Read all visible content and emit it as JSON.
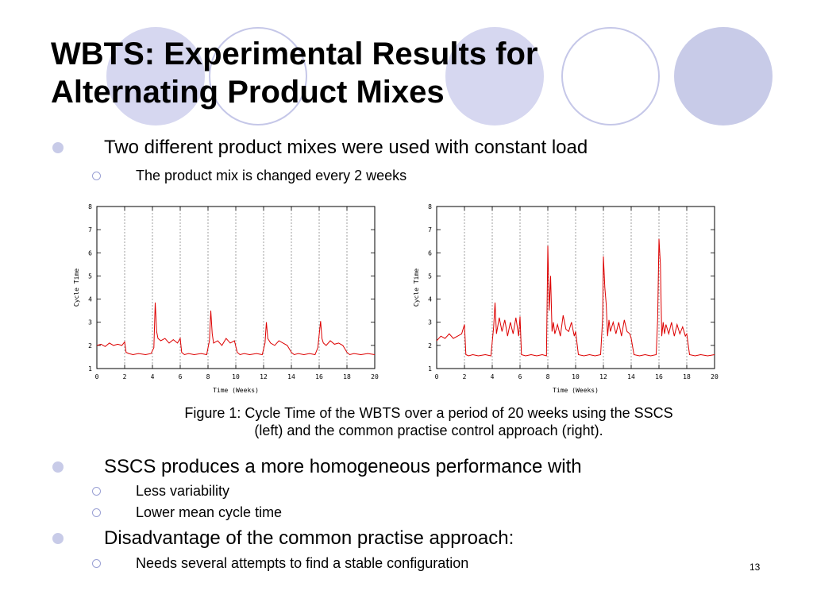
{
  "slide": {
    "title_line1": "WBTS: Experimental Results for",
    "title_line2": "Alternating Product Mixes",
    "bullets": [
      {
        "text": "Two different product mixes were used with constant load",
        "sub": [
          "The product mix is changed every 2 weeks"
        ]
      },
      {
        "text": "SSCS produces a more homogeneous performance with",
        "sub": [
          "Less variability",
          "Lower mean cycle time"
        ]
      },
      {
        "text": "Disadvantage of the common practise approach:",
        "sub": [
          "Needs several attempts to find a stable configuration"
        ]
      }
    ],
    "caption_line1": "Figure 1: Cycle Time of the WBTS over a period of 20 weeks using the SSCS",
    "caption_line2": "(left) and the common practise control approach (right).",
    "slide_number": "13",
    "colors": {
      "accent": "#c8cbe8",
      "ring": "#9aa0d4",
      "series": "#dd0000"
    }
  },
  "chart_data": [
    {
      "type": "line",
      "xlabel": "Time (Weeks)",
      "ylabel": "Cycle Time",
      "xlim": [
        0,
        20
      ],
      "ylim": [
        1,
        8
      ],
      "xticks": [
        0,
        2,
        4,
        6,
        8,
        10,
        12,
        14,
        16,
        18,
        20
      ],
      "yticks": [
        1,
        2,
        3,
        4,
        5,
        6,
        7,
        8
      ],
      "vlines": [
        2,
        4,
        6,
        8,
        10,
        12,
        14,
        16,
        18
      ],
      "series": [
        {
          "x": [
            0,
            0.3,
            0.6,
            0.9,
            1.2,
            1.5,
            1.8,
            2.0,
            2.1,
            2.3,
            2.6,
            3.0,
            3.5,
            3.9,
            4.1,
            4.2,
            4.3,
            4.4,
            4.6,
            4.9,
            5.2,
            5.5,
            5.8,
            6.0,
            6.1,
            6.3,
            6.6,
            7.0,
            7.5,
            7.9,
            8.1,
            8.2,
            8.3,
            8.4,
            8.7,
            9.0,
            9.3,
            9.6,
            9.9,
            10.1,
            10.3,
            10.6,
            11.0,
            11.5,
            11.9,
            12.1,
            12.2,
            12.3,
            12.5,
            12.8,
            13.1,
            13.4,
            13.7,
            14.0,
            14.2,
            14.5,
            14.9,
            15.3,
            15.7,
            15.9,
            16.1,
            16.2,
            16.3,
            16.5,
            16.8,
            17.1,
            17.4,
            17.7,
            18.0,
            18.2,
            18.5,
            19.0,
            19.5,
            20.0
          ],
          "y": [
            2.0,
            2.05,
            1.95,
            2.1,
            2.0,
            2.05,
            2.0,
            2.15,
            1.7,
            1.65,
            1.6,
            1.65,
            1.6,
            1.65,
            1.9,
            3.85,
            2.6,
            2.3,
            2.2,
            2.3,
            2.1,
            2.25,
            2.1,
            2.3,
            1.7,
            1.6,
            1.65,
            1.6,
            1.65,
            1.6,
            2.2,
            3.5,
            2.5,
            2.1,
            2.2,
            2.0,
            2.3,
            2.1,
            2.2,
            1.7,
            1.6,
            1.65,
            1.6,
            1.65,
            1.6,
            2.1,
            3.0,
            2.3,
            2.1,
            2.0,
            2.2,
            2.1,
            2.0,
            1.7,
            1.6,
            1.65,
            1.6,
            1.65,
            1.6,
            1.9,
            3.05,
            2.3,
            2.1,
            2.0,
            2.2,
            2.05,
            2.1,
            2.0,
            1.7,
            1.6,
            1.65,
            1.6,
            1.65,
            1.6
          ]
        }
      ]
    },
    {
      "type": "line",
      "xlabel": "Time (Weeks)",
      "ylabel": "Cycle Time",
      "xlim": [
        0,
        20
      ],
      "ylim": [
        1,
        8
      ],
      "xticks": [
        0,
        2,
        4,
        6,
        8,
        10,
        12,
        14,
        16,
        18,
        20
      ],
      "yticks": [
        1,
        2,
        3,
        4,
        5,
        6,
        7,
        8
      ],
      "vlines": [
        2,
        4,
        6,
        8,
        10,
        12,
        14,
        16,
        18
      ],
      "series": [
        {
          "x": [
            0,
            0.3,
            0.6,
            0.9,
            1.2,
            1.5,
            1.8,
            2.0,
            2.1,
            2.3,
            2.6,
            3.0,
            3.5,
            3.9,
            4.1,
            4.2,
            4.3,
            4.5,
            4.7,
            4.9,
            5.1,
            5.3,
            5.5,
            5.7,
            5.9,
            6.0,
            6.1,
            6.4,
            6.8,
            7.2,
            7.6,
            7.9,
            8.0,
            8.1,
            8.2,
            8.3,
            8.4,
            8.5,
            8.7,
            8.9,
            9.1,
            9.3,
            9.5,
            9.7,
            9.9,
            10.0,
            10.2,
            10.6,
            11.0,
            11.4,
            11.8,
            11.95,
            12.0,
            12.1,
            12.2,
            12.3,
            12.4,
            12.5,
            12.7,
            12.9,
            13.1,
            13.3,
            13.5,
            13.7,
            13.9,
            14.0,
            14.2,
            14.6,
            15.0,
            15.4,
            15.8,
            15.9,
            16.0,
            16.1,
            16.2,
            16.3,
            16.4,
            16.5,
            16.7,
            16.9,
            17.1,
            17.3,
            17.5,
            17.7,
            17.9,
            18.0,
            18.2,
            18.6,
            19.0,
            19.5,
            20.0
          ],
          "y": [
            2.2,
            2.4,
            2.3,
            2.5,
            2.3,
            2.4,
            2.5,
            2.9,
            1.6,
            1.55,
            1.6,
            1.55,
            1.6,
            1.55,
            2.8,
            3.85,
            2.5,
            3.2,
            2.6,
            3.1,
            2.4,
            3.0,
            2.5,
            3.2,
            2.4,
            3.25,
            1.6,
            1.55,
            1.6,
            1.55,
            1.6,
            1.55,
            6.3,
            3.5,
            5.0,
            2.6,
            3.0,
            2.5,
            2.9,
            2.4,
            3.3,
            2.7,
            2.6,
            3.0,
            2.4,
            2.6,
            1.6,
            1.55,
            1.6,
            1.55,
            1.6,
            3.2,
            5.85,
            4.5,
            3.8,
            2.4,
            3.1,
            2.6,
            3.0,
            2.5,
            3.0,
            2.4,
            3.1,
            2.6,
            2.5,
            2.3,
            1.6,
            1.55,
            1.6,
            1.55,
            1.6,
            3.1,
            6.6,
            5.5,
            2.4,
            3.0,
            2.5,
            2.9,
            2.5,
            3.0,
            2.4,
            2.9,
            2.5,
            2.8,
            2.4,
            2.5,
            1.6,
            1.55,
            1.6,
            1.55,
            1.6
          ]
        }
      ]
    }
  ]
}
